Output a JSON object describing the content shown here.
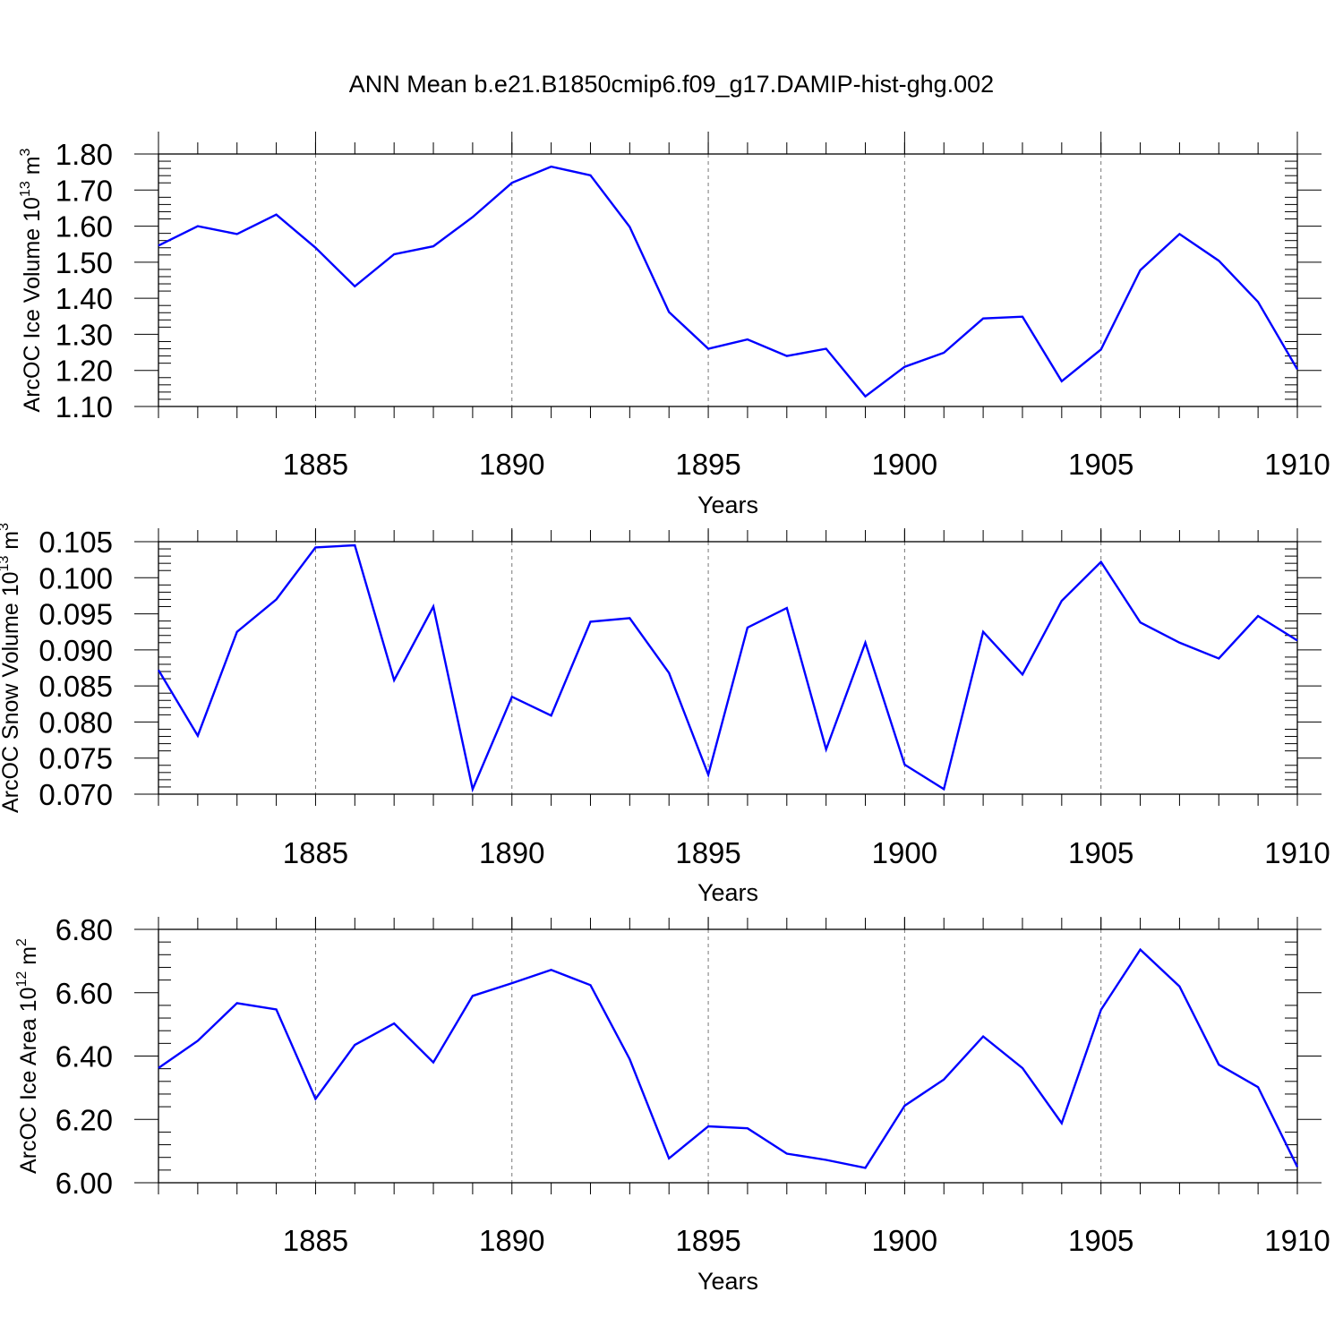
{
  "chart_data": {
    "title": "ANN Mean b.e21.B1850cmip6.f09_g17.DAMIP-hist-ghg.002",
    "panels": [
      {
        "type": "line",
        "ylabel": {
          "text": "ArcOC Ice Volume 10",
          "exponent": "13",
          "unit": " m",
          "unit_exponent": "3"
        },
        "xlabel": "Years",
        "xlim": [
          1881,
          1910
        ],
        "ylim": [
          1.1,
          1.8
        ],
        "yticks": [
          "1.10",
          "1.20",
          "1.30",
          "1.40",
          "1.50",
          "1.60",
          "1.70",
          "1.80"
        ],
        "xticks": [
          "1885",
          "1890",
          "1895",
          "1900",
          "1905",
          "1910"
        ],
        "x": [
          1881,
          1882,
          1883,
          1884,
          1885,
          1886,
          1887,
          1888,
          1889,
          1890,
          1891,
          1892,
          1893,
          1894,
          1895,
          1896,
          1897,
          1898,
          1899,
          1900,
          1901,
          1902,
          1903,
          1904,
          1905,
          1906,
          1907,
          1908,
          1909,
          1910
        ],
        "values": [
          1.546,
          1.6,
          1.578,
          1.632,
          1.54,
          1.433,
          1.522,
          1.544,
          1.625,
          1.72,
          1.765,
          1.741,
          1.598,
          1.362,
          1.26,
          1.286,
          1.24,
          1.26,
          1.128,
          1.21,
          1.249,
          1.344,
          1.349,
          1.17,
          1.258,
          1.478,
          1.578,
          1.504,
          1.39,
          1.203
        ]
      },
      {
        "type": "line",
        "ylabel": {
          "text": "ArcOC Snow Volume 10",
          "exponent": "13",
          "unit": " m",
          "unit_exponent": "3"
        },
        "xlabel": "Years",
        "xlim": [
          1881,
          1910
        ],
        "ylim": [
          0.07,
          0.105
        ],
        "yticks": [
          "0.070",
          "0.075",
          "0.080",
          "0.085",
          "0.090",
          "0.095",
          "0.100",
          "0.105"
        ],
        "xticks": [
          "1885",
          "1890",
          "1895",
          "1900",
          "1905",
          "1910"
        ],
        "x": [
          1881,
          1882,
          1883,
          1884,
          1885,
          1886,
          1887,
          1888,
          1889,
          1890,
          1891,
          1892,
          1893,
          1894,
          1895,
          1896,
          1897,
          1898,
          1899,
          1900,
          1901,
          1902,
          1903,
          1904,
          1905,
          1906,
          1907,
          1908,
          1909,
          1910
        ],
        "values": [
          0.0872,
          0.0781,
          0.0925,
          0.097,
          0.1042,
          0.1045,
          0.0858,
          0.096,
          0.0707,
          0.0835,
          0.0809,
          0.0939,
          0.0944,
          0.0868,
          0.0727,
          0.0931,
          0.0958,
          0.0762,
          0.091,
          0.0741,
          0.0707,
          0.0925,
          0.0866,
          0.0968,
          0.1022,
          0.0938,
          0.091,
          0.0888,
          0.0947,
          0.0913
        ]
      },
      {
        "type": "line",
        "ylabel": {
          "text": "ArcOC Ice Area 10",
          "exponent": "12",
          "unit": " m",
          "unit_exponent": "2"
        },
        "xlabel": "Years",
        "xlim": [
          1881,
          1910
        ],
        "ylim": [
          6.0,
          6.8
        ],
        "yticks": [
          "6.00",
          "6.20",
          "6.40",
          "6.60",
          "6.80"
        ],
        "xticks": [
          "1885",
          "1890",
          "1895",
          "1900",
          "1905",
          "1910"
        ],
        "x": [
          1881,
          1882,
          1883,
          1884,
          1885,
          1886,
          1887,
          1888,
          1889,
          1890,
          1891,
          1892,
          1893,
          1894,
          1895,
          1896,
          1897,
          1898,
          1899,
          1900,
          1901,
          1902,
          1903,
          1904,
          1905,
          1906,
          1907,
          1908,
          1909,
          1910
        ],
        "values": [
          6.362,
          6.448,
          6.567,
          6.547,
          6.265,
          6.435,
          6.503,
          6.38,
          6.59,
          6.63,
          6.672,
          6.624,
          6.39,
          6.077,
          6.178,
          6.172,
          6.092,
          6.072,
          6.047,
          6.243,
          6.326,
          6.462,
          6.362,
          6.188,
          6.546,
          6.736,
          6.62,
          6.373,
          6.302,
          6.05
        ]
      }
    ]
  }
}
